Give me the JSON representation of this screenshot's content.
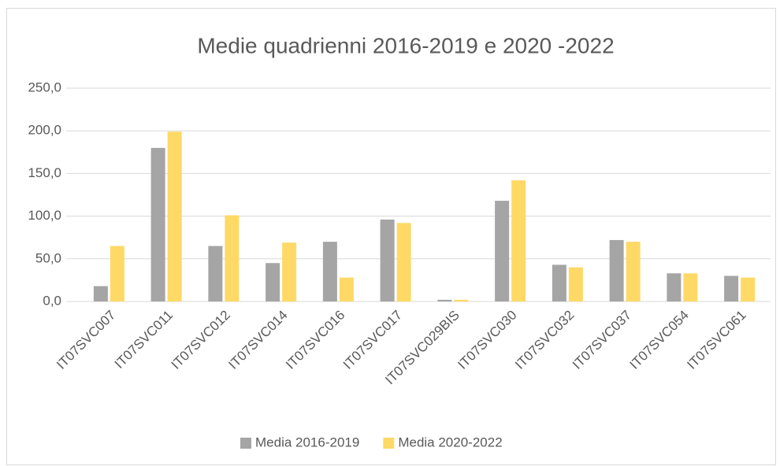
{
  "chart_data": {
    "type": "bar",
    "title": "Medie quadrienni 2016-2019 e 2020 -2022",
    "categories": [
      "IT07SVC007",
      "IT07SVC011",
      "IT07SVC012",
      "IT07SVC014",
      "IT07SVC016",
      "IT07SVC017",
      "IT07SVC029BIS",
      "IT07SVC030",
      "IT07SVC032",
      "IT07SVC037",
      "IT07SVC054",
      "IT07SVC061"
    ],
    "series": [
      {
        "name": "Media 2016-2019",
        "color": "#a5a5a5",
        "values": [
          18,
          180,
          65,
          45,
          70,
          96,
          2,
          118,
          43,
          72,
          33,
          30
        ]
      },
      {
        "name": "Media 2020-2022",
        "color": "#ffd966",
        "values": [
          65,
          199,
          101,
          69,
          28,
          92,
          2,
          142,
          40,
          70,
          33,
          28
        ]
      }
    ],
    "ylim": [
      0,
      250
    ],
    "yticks": [
      {
        "value": 0,
        "label": "0,0"
      },
      {
        "value": 50,
        "label": "50,0"
      },
      {
        "value": 100,
        "label": "100,0"
      },
      {
        "value": 150,
        "label": "150,0"
      },
      {
        "value": 200,
        "label": "200,0"
      },
      {
        "value": 250,
        "label": "250,0"
      }
    ],
    "grid": true,
    "legend": "bottom"
  }
}
